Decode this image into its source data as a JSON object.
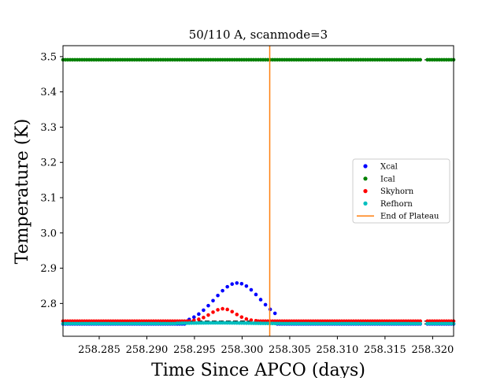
{
  "chart_data": {
    "type": "scatter",
    "title": "50/110 A, scanmode=3",
    "xlabel": "Time Since APCO (days)",
    "ylabel": "Temperature (K)",
    "xlim": [
      258.2812,
      258.3222
    ],
    "ylim": [
      2.707,
      3.531
    ],
    "xticks": [
      258.285,
      258.29,
      258.295,
      258.3,
      258.305,
      258.31,
      258.315,
      258.32
    ],
    "xtick_labels": [
      "258.285",
      "258.290",
      "258.295",
      "258.300",
      "258.305",
      "258.310",
      "258.315",
      "258.320"
    ],
    "yticks": [
      2.8,
      2.9,
      3.0,
      3.1,
      3.2,
      3.3,
      3.4,
      3.5
    ],
    "ytick_labels": [
      "2.8",
      "2.9",
      "3.0",
      "3.1",
      "3.2",
      "3.3",
      "3.4",
      "3.5"
    ],
    "grid": false,
    "legend_placement": "center-right",
    "gap": [
      258.3188,
      258.3194
    ],
    "end_of_plateau": 258.3029,
    "series": [
      {
        "name": "Xcal",
        "color": "#0000ff",
        "baseline": 2.742,
        "peak": {
          "x": 258.2995,
          "y": 2.858,
          "width": 0.0024,
          "from": 258.294,
          "to": 258.3035
        }
      },
      {
        "name": "Ical",
        "color": "#008000",
        "baseline": 3.491
      },
      {
        "name": "Skyhorn",
        "color": "#ff0000",
        "baseline": 2.75,
        "peak": {
          "x": 258.298,
          "y": 2.785,
          "width": 0.0013,
          "from": 258.2945,
          "to": 258.3015
        }
      },
      {
        "name": "Refhorn",
        "color": "#00bfbf",
        "baseline": 2.743,
        "peak": {
          "x": 258.2975,
          "y": 2.745,
          "width": 0.003,
          "from": 258.293,
          "to": 258.304
        }
      }
    ],
    "legend": [
      {
        "label": "Xcal",
        "color": "#0000ff",
        "kind": "dot"
      },
      {
        "label": "Ical",
        "color": "#008000",
        "kind": "dot"
      },
      {
        "label": "Skyhorn",
        "color": "#ff0000",
        "kind": "dot"
      },
      {
        "label": "Refhorn",
        "color": "#00bfbf",
        "kind": "dot"
      },
      {
        "label": "End of Plateau",
        "color": "#ff7f0e",
        "kind": "line"
      }
    ]
  }
}
